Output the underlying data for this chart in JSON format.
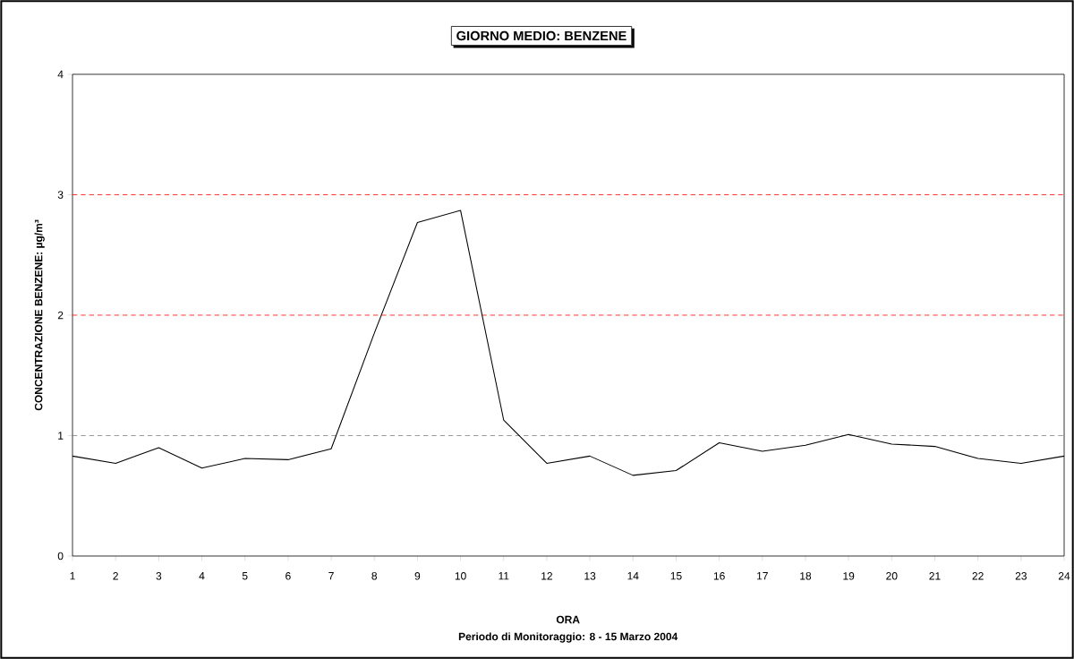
{
  "chart_data": {
    "type": "line",
    "title": "GIORNO MEDIO: BENZENE",
    "xlabel": "ORA",
    "ylabel": "CONCENTRAZIONE BENZENE: µg/m³",
    "annotations": [
      "Periodo di Monitoraggio: 8 - 15 Marzo 2004"
    ],
    "x": [
      1,
      2,
      3,
      4,
      5,
      6,
      7,
      8,
      9,
      10,
      11,
      12,
      13,
      14,
      15,
      16,
      17,
      18,
      19,
      20,
      21,
      22,
      23,
      24
    ],
    "series": [
      {
        "color": "#000000",
        "values": [
          0.83,
          0.77,
          0.9,
          0.73,
          0.81,
          0.8,
          0.89,
          1.85,
          2.77,
          2.87,
          1.13,
          0.77,
          0.83,
          0.67,
          0.71,
          0.94,
          0.87,
          0.92,
          1.01,
          0.93,
          0.91,
          0.81,
          0.77,
          0.83
        ]
      }
    ],
    "xlim": [
      1,
      24
    ],
    "xticks": [
      1,
      2,
      3,
      4,
      5,
      6,
      7,
      8,
      9,
      10,
      11,
      12,
      13,
      14,
      15,
      16,
      17,
      18,
      19,
      20,
      21,
      22,
      23,
      24
    ],
    "ylim": [
      0,
      4
    ],
    "yticks": [
      0,
      1,
      2,
      3,
      4
    ],
    "ref_lines": [
      {
        "axis": "y",
        "value": 1,
        "color": "#808080",
        "line_style": "dashed"
      },
      {
        "axis": "y",
        "value": 2,
        "color": "#ff0000",
        "line_style": "dashed"
      },
      {
        "axis": "y",
        "value": 3,
        "color": "#ff0000",
        "line_style": "dashed"
      }
    ],
    "grid": false,
    "marker": "none",
    "line_style": "solid"
  }
}
